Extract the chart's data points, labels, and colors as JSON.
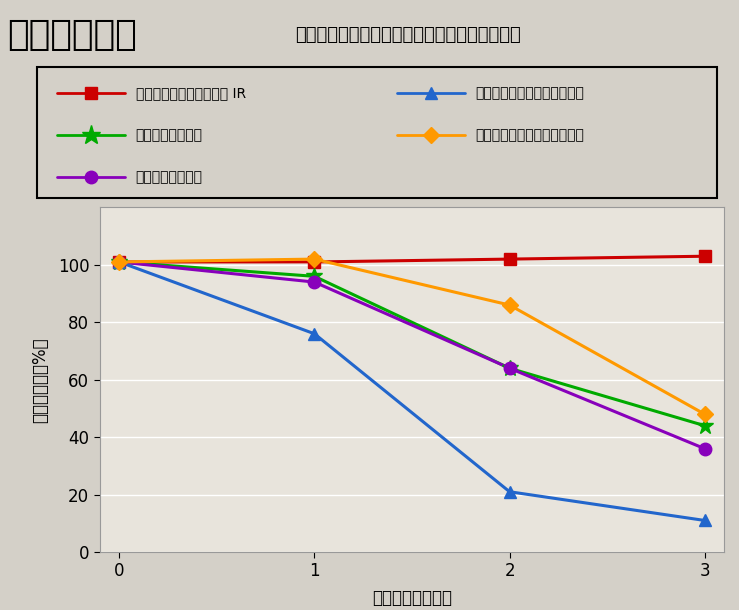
{
  "title_large": "野外暴露試験",
  "title_sub": "宮古島野外暴露試験（溶剤系フッ素との比較）",
  "xlabel": "暴露時間（時間）",
  "ylabel": "光沢保持率（%）",
  "x": [
    0,
    1,
    2,
    3
  ],
  "series": [
    {
      "label": "スーパーセランマイルド IR",
      "color": "#cc0000",
      "marker": "s",
      "markersize": 8,
      "values": [
        101,
        101,
        102,
        103
      ]
    },
    {
      "label": "Ａ社溶剤系フッ素",
      "color": "#00aa00",
      "marker": "*",
      "markersize": 12,
      "values": [
        101,
        96,
        64,
        44
      ]
    },
    {
      "label": "Ｂ社溶剤系フッ素",
      "color": "#8800bb",
      "marker": "o",
      "markersize": 9,
      "values": [
        101,
        94,
        64,
        36
      ]
    },
    {
      "label": "Ａ社溶剤系フッ素（弱溶剤）",
      "color": "#2266cc",
      "marker": "^",
      "markersize": 9,
      "values": [
        101,
        76,
        21,
        11
      ]
    },
    {
      "label": "Ｄ社溶剤系フッ素（弱溶剤）",
      "color": "#ff9900",
      "marker": "D",
      "markersize": 8,
      "values": [
        101,
        102,
        86,
        48
      ]
    }
  ],
  "legend_order": [
    0,
    3,
    1,
    4,
    2
  ],
  "legend_cols": 2,
  "ylim": [
    0,
    120
  ],
  "yticks": [
    0,
    20,
    40,
    60,
    80,
    100
  ],
  "xticks": [
    0,
    1,
    2,
    3
  ],
  "bg_color": "#d4d0c8",
  "plot_bg": "#e8e4dc",
  "legend_bg": "#ffffff",
  "title_bg": "#d4d0c8",
  "linewidth": 2.2
}
